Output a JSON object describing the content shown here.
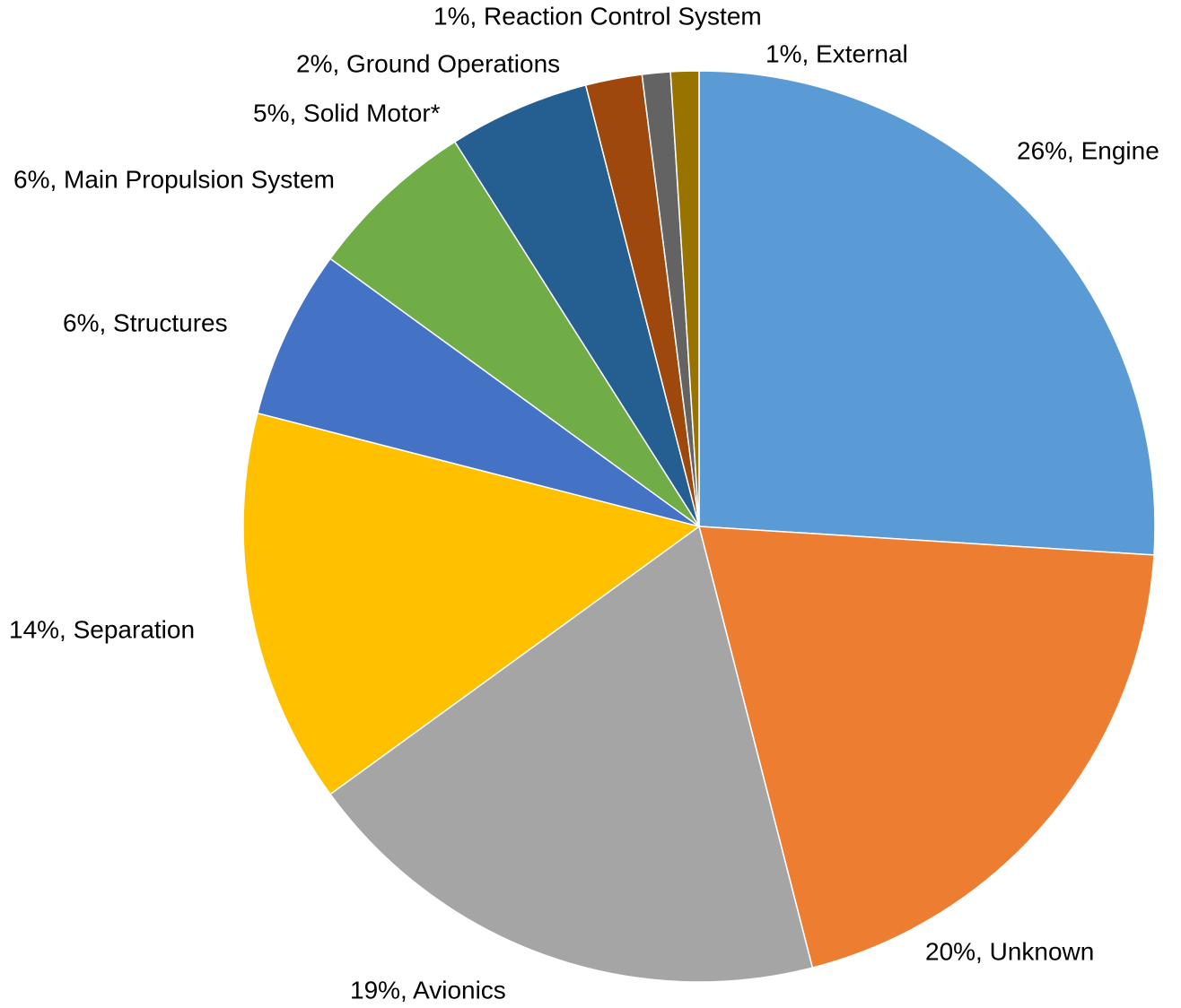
{
  "chart_data": {
    "type": "pie",
    "values": [
      26,
      20,
      19,
      14,
      6,
      6,
      5,
      2,
      1,
      1
    ],
    "value_labels": [
      "26%, Engine",
      "20%, Unknown",
      "19%, Avionics",
      "14%, Separation",
      "6%, Structures",
      "6%, Main Propulsion System",
      "5%, Solid Motor*",
      "2%, Ground Operations",
      "1%, Reaction Control System",
      "1%, External"
    ],
    "colors": [
      "#5b9bd5",
      "#ed7d31",
      "#a5a5a5",
      "#ffc000",
      "#4472c4",
      "#70ad47",
      "#255e91",
      "#9e480e",
      "#636363",
      "#997300"
    ]
  }
}
